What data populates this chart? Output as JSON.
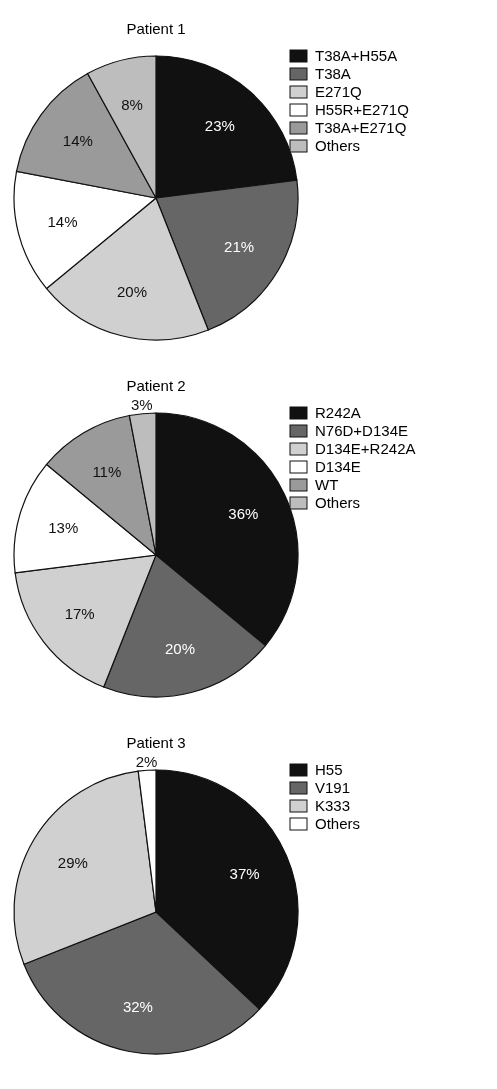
{
  "chart_data": [
    {
      "type": "pie",
      "title": "Patient 1",
      "categories": [
        "T38A+H55A",
        "T38A",
        "E271Q",
        "H55R+E271Q",
        "T38A+E271Q",
        "Others"
      ],
      "values": [
        23,
        21,
        20,
        14,
        14,
        8
      ],
      "value_labels": [
        "23%",
        "21%",
        "20%",
        "14%",
        "14%",
        "8%"
      ],
      "colors": [
        "#111111",
        "#666666",
        "#d0d0d0",
        "#ffffff",
        "#9a9a9a",
        "#bdbdbd"
      ],
      "legend": "right"
    },
    {
      "type": "pie",
      "title": "Patient 2",
      "categories": [
        "R242A",
        "N76D+D134E",
        "D134E+R242A",
        "D134E",
        "WT",
        "Others"
      ],
      "values": [
        36,
        20,
        17,
        13,
        11,
        3
      ],
      "value_labels": [
        "36%",
        "20%",
        "17%",
        "13%",
        "11%",
        "3%"
      ],
      "colors": [
        "#111111",
        "#666666",
        "#d0d0d0",
        "#ffffff",
        "#9a9a9a",
        "#bdbdbd"
      ],
      "legend": "right"
    },
    {
      "type": "pie",
      "title": "Patient 3",
      "categories": [
        "H55",
        "V191",
        "K333",
        "Others"
      ],
      "values": [
        37,
        32,
        29,
        2
      ],
      "value_labels": [
        "37%",
        "32%",
        "29%",
        "2%"
      ],
      "colors": [
        "#111111",
        "#666666",
        "#d0d0d0",
        "#ffffff"
      ],
      "legend": "right"
    }
  ]
}
